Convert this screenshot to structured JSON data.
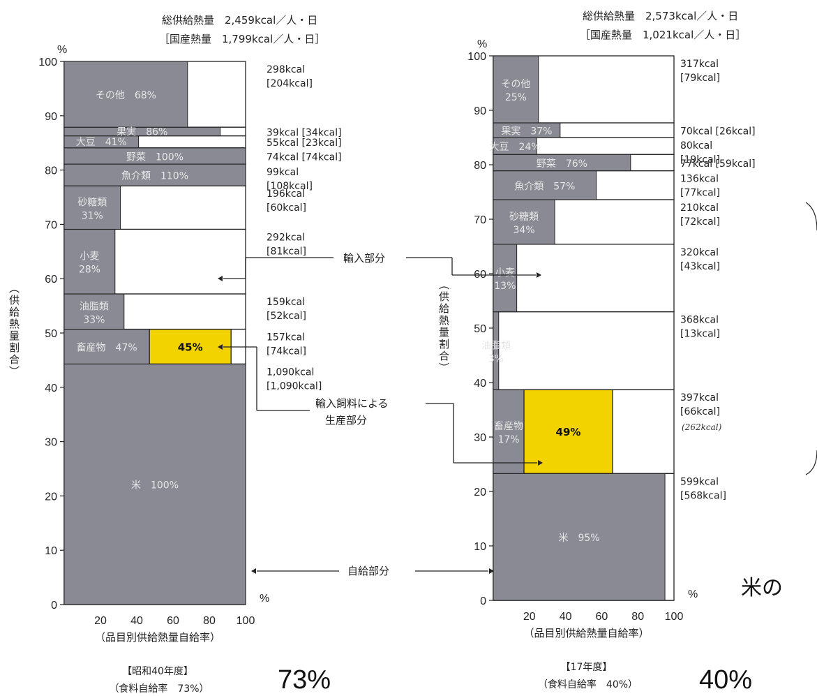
{
  "chart_data": [
    {
      "type": "bar",
      "variant": "mosaic",
      "header_total": "総供給熱量　2,459kcal／人・日",
      "header_domestic": "［国産熱量　1,799kcal／人・日］",
      "ylabel": "（供給熱量割合）",
      "xlabel": "（品目別供給熱量自給率）",
      "y_unit": "%",
      "x_unit": "%",
      "xlim": [
        0,
        100
      ],
      "ylim": [
        0,
        100
      ],
      "yticks": [
        "0",
        "10",
        "20",
        "30",
        "40",
        "50",
        "60",
        "70",
        "80",
        "90",
        "100"
      ],
      "xticks": [
        "20",
        "40",
        "60",
        "80",
        "100"
      ],
      "year_label": "【昭和40年度】",
      "rate_label": "（食料自給率　73%）",
      "big_rate": "73%",
      "segments": [
        {
          "name": "米",
          "ratio_text": "100%",
          "y0": 0,
          "y1": 44.3,
          "rate": 100,
          "kcal": "1,090kcal",
          "kcal_domestic": "[1,090kcal]"
        },
        {
          "name": "畜産物",
          "ratio_text": "47%",
          "y0": 44.3,
          "y1": 50.7,
          "rate": 47,
          "feed_import_rate": 45,
          "feed_label": "45%",
          "kcal": "157kcal",
          "kcal_domestic": "[74kcal]"
        },
        {
          "name": "油脂類",
          "ratio_text": "33%",
          "y0": 50.7,
          "y1": 57.2,
          "rate": 33,
          "kcal": "159kcal",
          "kcal_domestic": "[52kcal]"
        },
        {
          "name": "小麦",
          "ratio_text": "28%",
          "y0": 57.2,
          "y1": 69.1,
          "rate": 28,
          "kcal": "292kcal",
          "kcal_domestic": "[81kcal]"
        },
        {
          "name": "砂糖類",
          "ratio_text": "31%",
          "y0": 69.1,
          "y1": 77.1,
          "rate": 31,
          "kcal": "196kcal",
          "kcal_domestic": "[60kcal]"
        },
        {
          "name": "魚介類",
          "ratio_text": "110%",
          "y0": 77.1,
          "y1": 81.1,
          "rate": 100,
          "kcal": "99kcal",
          "kcal_domestic": "[108kcal]"
        },
        {
          "name": "野菜",
          "ratio_text": "100%",
          "y0": 81.1,
          "y1": 84.1,
          "rate": 100,
          "kcal": "74kcal",
          "kcal_domestic": "[74kcal]"
        },
        {
          "name": "大豆",
          "ratio_text": "41%",
          "y0": 84.1,
          "y1": 86.3,
          "rate": 41,
          "kcal": "55kcal",
          "kcal_domestic": "[23kcal]"
        },
        {
          "name": "果実",
          "ratio_text": "86%",
          "y0": 86.3,
          "y1": 87.9,
          "rate": 86,
          "kcal": "39kcal",
          "kcal_domestic": "[34kcal]"
        },
        {
          "name": "その他",
          "ratio_text": "68%",
          "y0": 87.9,
          "y1": 100,
          "rate": 68,
          "kcal": "298kcal",
          "kcal_domestic": "[204kcal]"
        }
      ]
    },
    {
      "type": "bar",
      "variant": "mosaic",
      "header_total": "総供給熱量　2,573kcal／人・日",
      "header_domestic": "［国産熱量　1,021kcal／人・日］",
      "ylabel": "（供給熱量割合）",
      "xlabel": "（品目別供給熱量自給率）",
      "y_unit": "%",
      "x_unit": "%",
      "xlim": [
        0,
        100
      ],
      "ylim": [
        0,
        100
      ],
      "yticks": [
        "0",
        "10",
        "20",
        "30",
        "40",
        "50",
        "60",
        "70",
        "80",
        "90",
        "100"
      ],
      "xticks": [
        "20",
        "40",
        "60",
        "80",
        "100"
      ],
      "year_label": "【17年度】",
      "rate_label": "（食料自給率　40%）",
      "big_rate": "40%",
      "segments": [
        {
          "name": "米",
          "ratio_text": "95%",
          "y0": 0,
          "y1": 23.3,
          "rate": 95,
          "kcal": "599kcal",
          "kcal_domestic": "[568kcal]"
        },
        {
          "name": "畜産物",
          "ratio_text": "17%",
          "y0": 23.3,
          "y1": 38.7,
          "rate": 17,
          "feed_import_rate": 49,
          "feed_label": "49%",
          "kcal": "397kcal",
          "kcal_domestic": "[66kcal]",
          "note": "(262kcal)"
        },
        {
          "name": "油脂類",
          "ratio_text": "3%",
          "y0": 38.7,
          "y1": 53.0,
          "rate": 3,
          "kcal": "368kcal",
          "kcal_domestic": "[13kcal]"
        },
        {
          "name": "小麦",
          "ratio_text": "13%",
          "y0": 53.0,
          "y1": 65.4,
          "rate": 13,
          "kcal": "320kcal",
          "kcal_domestic": "[43kcal]"
        },
        {
          "name": "砂糖類",
          "ratio_text": "34%",
          "y0": 65.4,
          "y1": 73.6,
          "rate": 34,
          "kcal": "210kcal",
          "kcal_domestic": "[72kcal]"
        },
        {
          "name": "魚介類",
          "ratio_text": "57%",
          "y0": 73.6,
          "y1": 78.9,
          "rate": 57,
          "kcal": "136kcal",
          "kcal_domestic": "[77kcal]"
        },
        {
          "name": "野菜",
          "ratio_text": "76%",
          "y0": 78.9,
          "y1": 81.9,
          "rate": 76,
          "kcal": "77kcal",
          "kcal_domestic": "[59kcal]"
        },
        {
          "name": "大豆",
          "ratio_text": "24%",
          "y0": 81.9,
          "y1": 85.0,
          "rate": 24,
          "kcal": "80kcal",
          "kcal_domestic": "[19kcal]"
        },
        {
          "name": "果実",
          "ratio_text": "37%",
          "y0": 85.0,
          "y1": 87.7,
          "rate": 37,
          "kcal": "70kcal",
          "kcal_domestic": "[26kcal]"
        },
        {
          "name": "その他",
          "ratio_text": "25%",
          "y0": 87.7,
          "y1": 100,
          "rate": 25,
          "kcal": "317kcal",
          "kcal_domestic": "[79kcal]"
        }
      ]
    }
  ],
  "annotations": {
    "import_part": "輸入部分",
    "feed_part_line1": "輸入飼料による",
    "feed_part_line2": "生産部分",
    "self_part": "自給部分"
  },
  "side_text": "米の",
  "colors": {
    "bar": "#8a8a94",
    "feed": "#f2d300",
    "import_box": "#ffffff",
    "outline": "#222222"
  }
}
